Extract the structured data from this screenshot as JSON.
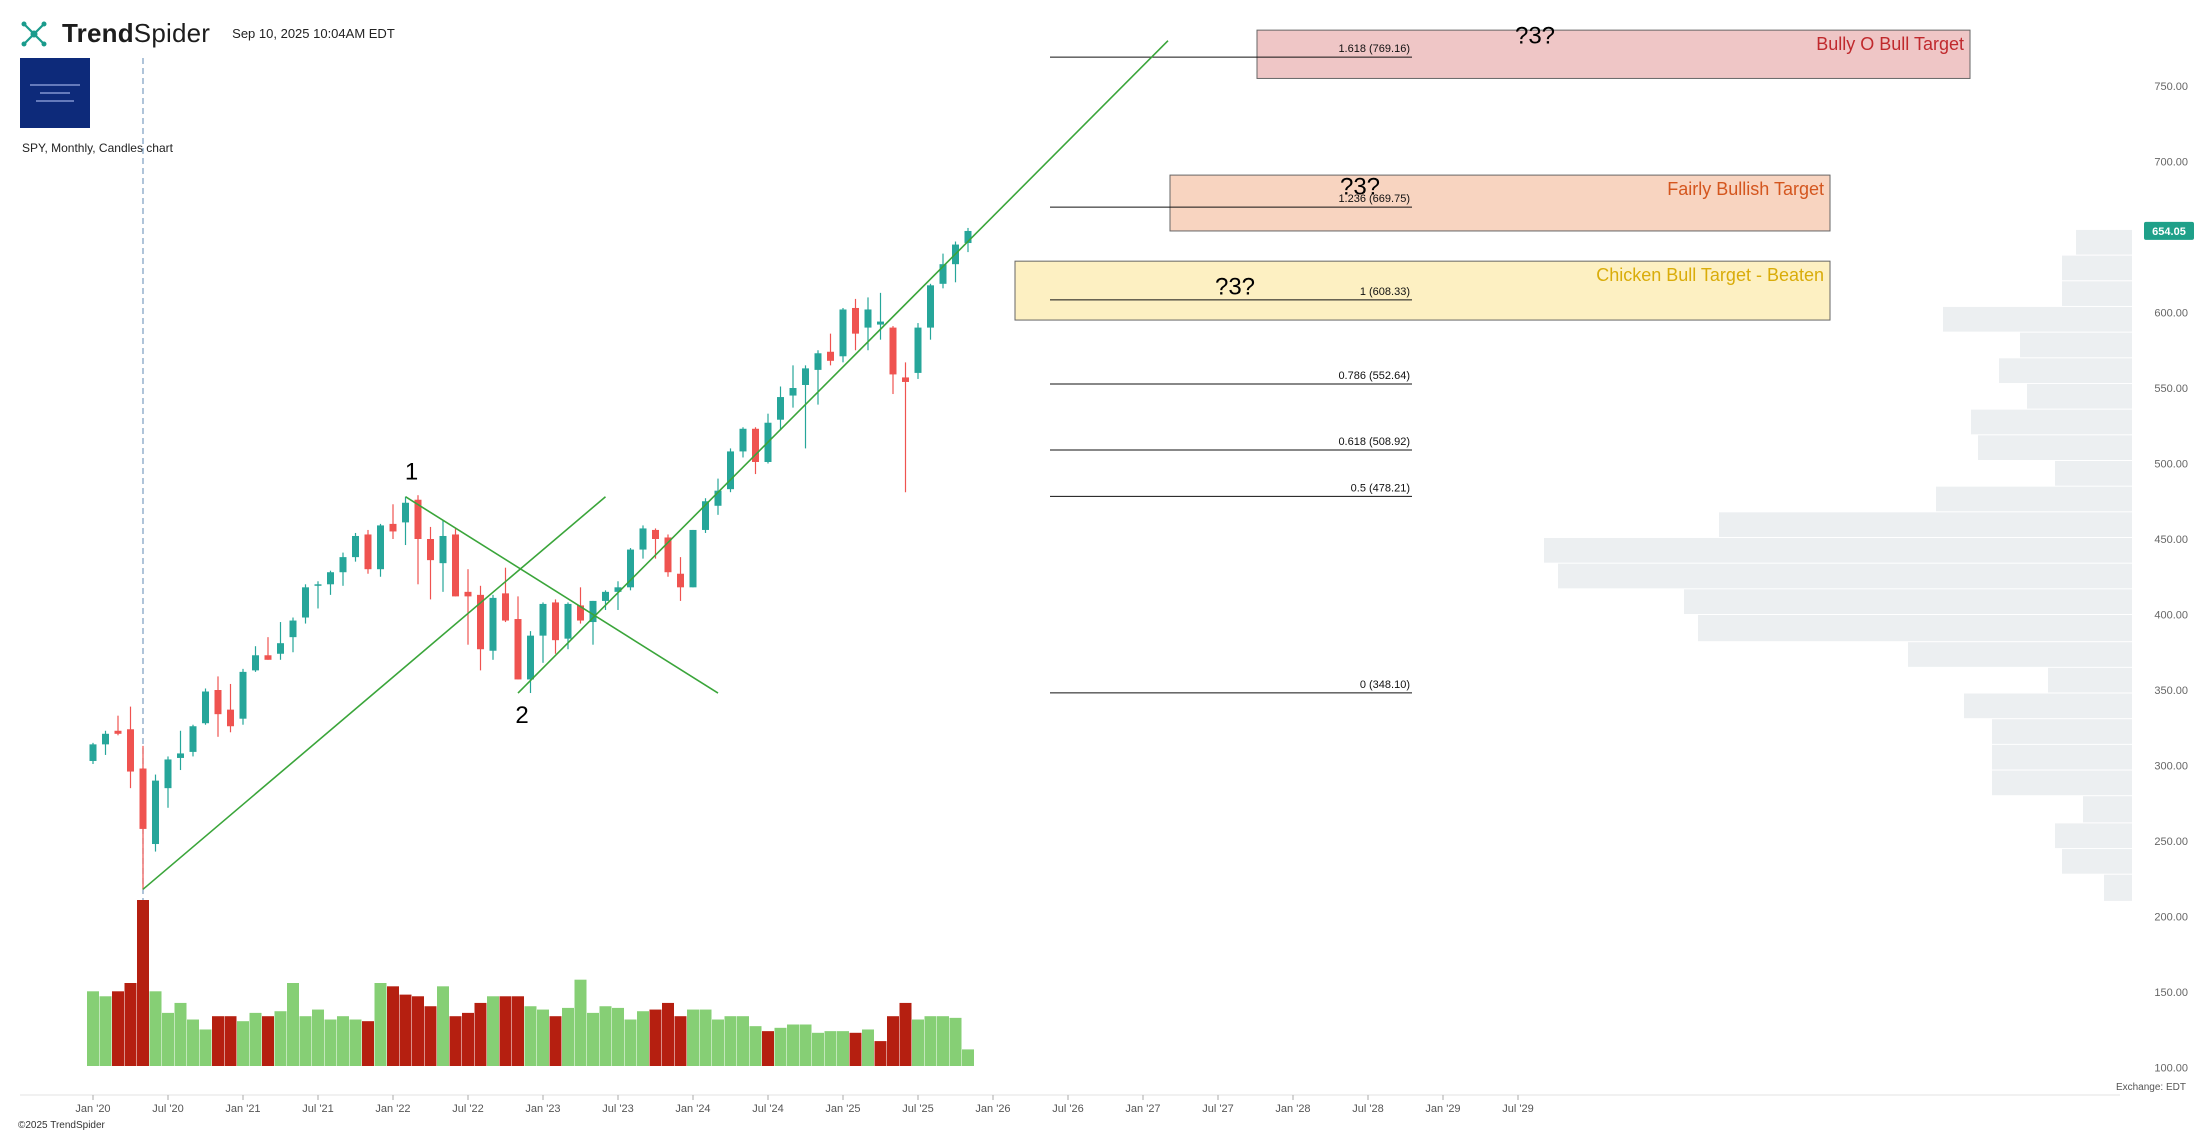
{
  "header": {
    "brand_bold": "Trend",
    "brand_light": "Spider",
    "timestamp": "Sep 10, 2025 10:04AM EDT",
    "symbol_line": "SPY, Monthly, Candles chart",
    "copyright": "©2025 TrendSpider",
    "exchange": "Exchange: EDT"
  },
  "chart_data": {
    "type": "candlestick",
    "symbol": "SPY",
    "interval": "Monthly",
    "x_tick_labels": [
      "Jan '20",
      "Jul '20",
      "Jan '21",
      "Jul '21",
      "Jan '22",
      "Jul '22",
      "Jan '23",
      "Jul '23",
      "Jan '24",
      "Jul '24",
      "Jan '25",
      "Jul '25",
      "Jan '26",
      "Jul '26",
      "Jan '27",
      "Jul '27",
      "Jan '28",
      "Jul '28",
      "Jan '29",
      "Jul '29"
    ],
    "y_ticks": [
      100,
      150,
      200,
      250,
      300,
      350,
      400,
      450,
      500,
      550,
      600,
      650,
      700,
      750
    ],
    "y_tick_labels": [
      "100.00",
      "150.00",
      "200.00",
      "250.00",
      "300.00",
      "350.00",
      "400.00",
      "450.00",
      "500.00",
      "550.00",
      "600.00",
      "700.00",
      "750.00"
    ],
    "ylim": [
      95,
      800
    ],
    "last_price": "654.05",
    "candles": [
      {
        "d": "2019-11",
        "o": 303,
        "h": 315,
        "l": 301,
        "c": 314
      },
      {
        "d": "2019-12",
        "o": 314,
        "h": 323,
        "l": 307,
        "c": 321
      },
      {
        "d": "2020-01",
        "o": 323,
        "h": 333,
        "l": 320,
        "c": 321
      },
      {
        "d": "2020-02",
        "o": 324,
        "h": 339,
        "l": 285,
        "c": 296
      },
      {
        "d": "2020-03",
        "o": 298,
        "h": 313,
        "l": 218,
        "c": 258
      },
      {
        "d": "2020-04",
        "o": 248,
        "h": 294,
        "l": 243,
        "c": 290
      },
      {
        "d": "2020-05",
        "o": 285,
        "h": 306,
        "l": 272,
        "c": 304
      },
      {
        "d": "2020-06",
        "o": 305,
        "h": 323,
        "l": 297,
        "c": 308
      },
      {
        "d": "2020-07",
        "o": 309,
        "h": 327,
        "l": 306,
        "c": 326
      },
      {
        "d": "2020-08",
        "o": 328,
        "h": 351,
        "l": 327,
        "c": 349
      },
      {
        "d": "2020-09",
        "o": 350,
        "h": 359,
        "l": 319,
        "c": 334
      },
      {
        "d": "2020-10",
        "o": 337,
        "h": 354,
        "l": 322,
        "c": 326
      },
      {
        "d": "2020-11",
        "o": 331,
        "h": 364,
        "l": 327,
        "c": 362
      },
      {
        "d": "2020-12",
        "o": 363,
        "h": 379,
        "l": 362,
        "c": 373
      },
      {
        "d": "2021-01",
        "o": 373,
        "h": 385,
        "l": 370,
        "c": 370
      },
      {
        "d": "2021-02",
        "o": 374,
        "h": 395,
        "l": 370,
        "c": 381
      },
      {
        "d": "2021-03",
        "o": 385,
        "h": 398,
        "l": 375,
        "c": 396
      },
      {
        "d": "2021-04",
        "o": 398,
        "h": 420,
        "l": 394,
        "c": 418
      },
      {
        "d": "2021-05",
        "o": 420,
        "h": 422,
        "l": 404,
        "c": 420
      },
      {
        "d": "2021-06",
        "o": 420,
        "h": 429,
        "l": 413,
        "c": 428
      },
      {
        "d": "2021-07",
        "o": 428,
        "h": 441,
        "l": 419,
        "c": 438
      },
      {
        "d": "2021-08",
        "o": 438,
        "h": 454,
        "l": 435,
        "c": 452
      },
      {
        "d": "2021-09",
        "o": 453,
        "h": 456,
        "l": 427,
        "c": 430
      },
      {
        "d": "2021-10",
        "o": 430,
        "h": 460,
        "l": 425,
        "c": 459
      },
      {
        "d": "2021-11",
        "o": 460,
        "h": 473,
        "l": 450,
        "c": 455
      },
      {
        "d": "2021-12",
        "o": 461,
        "h": 478,
        "l": 446,
        "c": 474
      },
      {
        "d": "2022-01",
        "o": 476,
        "h": 479,
        "l": 420,
        "c": 450
      },
      {
        "d": "2022-02",
        "o": 450,
        "h": 458,
        "l": 410,
        "c": 436
      },
      {
        "d": "2022-03",
        "o": 434,
        "h": 462,
        "l": 415,
        "c": 452
      },
      {
        "d": "2022-04",
        "o": 453,
        "h": 457,
        "l": 412,
        "c": 412
      },
      {
        "d": "2022-05",
        "o": 415,
        "h": 430,
        "l": 380,
        "c": 412
      },
      {
        "d": "2022-06",
        "o": 413,
        "h": 419,
        "l": 363,
        "c": 377
      },
      {
        "d": "2022-07",
        "o": 376,
        "h": 413,
        "l": 370,
        "c": 411
      },
      {
        "d": "2022-08",
        "o": 414,
        "h": 431,
        "l": 395,
        "c": 396
      },
      {
        "d": "2022-09",
        "o": 397,
        "h": 412,
        "l": 357,
        "c": 357
      },
      {
        "d": "2022-10",
        "o": 357,
        "h": 389,
        "l": 348,
        "c": 386
      },
      {
        "d": "2022-11",
        "o": 386,
        "h": 408,
        "l": 368,
        "c": 407
      },
      {
        "d": "2022-12",
        "o": 408,
        "h": 410,
        "l": 374,
        "c": 383
      },
      {
        "d": "2023-01",
        "o": 384,
        "h": 408,
        "l": 377,
        "c": 407
      },
      {
        "d": "2023-02",
        "o": 406,
        "h": 418,
        "l": 394,
        "c": 396
      },
      {
        "d": "2023-03",
        "o": 395,
        "h": 409,
        "l": 380,
        "c": 409
      },
      {
        "d": "2023-04",
        "o": 409,
        "h": 416,
        "l": 403,
        "c": 415
      },
      {
        "d": "2023-05",
        "o": 415,
        "h": 422,
        "l": 403,
        "c": 418
      },
      {
        "d": "2023-06",
        "o": 418,
        "h": 444,
        "l": 416,
        "c": 443
      },
      {
        "d": "2023-07",
        "o": 443,
        "h": 459,
        "l": 437,
        "c": 457
      },
      {
        "d": "2023-08",
        "o": 456,
        "h": 457,
        "l": 437,
        "c": 450
      },
      {
        "d": "2023-09",
        "o": 451,
        "h": 453,
        "l": 425,
        "c": 428
      },
      {
        "d": "2023-10",
        "o": 427,
        "h": 438,
        "l": 409,
        "c": 418
      },
      {
        "d": "2023-11",
        "o": 418,
        "h": 456,
        "l": 418,
        "c": 456
      },
      {
        "d": "2023-12",
        "o": 456,
        "h": 477,
        "l": 454,
        "c": 475
      },
      {
        "d": "2024-01",
        "o": 472,
        "h": 490,
        "l": 466,
        "c": 482
      },
      {
        "d": "2024-02",
        "o": 483,
        "h": 510,
        "l": 481,
        "c": 508
      },
      {
        "d": "2024-03",
        "o": 508,
        "h": 524,
        "l": 504,
        "c": 523
      },
      {
        "d": "2024-04",
        "o": 523,
        "h": 524,
        "l": 493,
        "c": 501
      },
      {
        "d": "2024-05",
        "o": 501,
        "h": 533,
        "l": 500,
        "c": 527
      },
      {
        "d": "2024-06",
        "o": 529,
        "h": 551,
        "l": 522,
        "c": 544
      },
      {
        "d": "2024-07",
        "o": 545,
        "h": 565,
        "l": 537,
        "c": 550
      },
      {
        "d": "2024-08",
        "o": 552,
        "h": 565,
        "l": 510,
        "c": 563
      },
      {
        "d": "2024-09",
        "o": 562,
        "h": 575,
        "l": 539,
        "c": 573
      },
      {
        "d": "2024-10",
        "o": 574,
        "h": 586,
        "l": 565,
        "c": 568
      },
      {
        "d": "2024-11",
        "o": 571,
        "h": 603,
        "l": 567,
        "c": 602
      },
      {
        "d": "2024-12",
        "o": 603,
        "h": 609,
        "l": 575,
        "c": 586
      },
      {
        "d": "2025-01",
        "o": 590,
        "h": 610,
        "l": 575,
        "c": 602
      },
      {
        "d": "2025-02",
        "o": 592,
        "h": 613,
        "l": 582,
        "c": 594
      },
      {
        "d": "2025-03",
        "o": 590,
        "h": 591,
        "l": 546,
        "c": 559
      },
      {
        "d": "2025-04",
        "o": 557,
        "h": 567,
        "l": 481,
        "c": 554
      },
      {
        "d": "2025-05",
        "o": 560,
        "h": 593,
        "l": 556,
        "c": 590
      },
      {
        "d": "2025-06",
        "o": 590,
        "h": 619,
        "l": 582,
        "c": 618
      },
      {
        "d": "2025-07",
        "o": 619,
        "h": 639,
        "l": 616,
        "c": 632
      },
      {
        "d": "2025-08",
        "o": 632,
        "h": 647,
        "l": 620,
        "c": 645
      },
      {
        "d": "2025-09",
        "o": 646,
        "h": 656,
        "l": 640,
        "c": 654
      }
    ],
    "volume_up": [
      "g",
      "g",
      "r",
      "r",
      "r",
      "g",
      "g",
      "g",
      "g",
      "g",
      "r",
      "r",
      "g",
      "g",
      "r",
      "g",
      "g",
      "g",
      "g",
      "g",
      "g",
      "g",
      "r",
      "g",
      "r",
      "r",
      "r",
      "r",
      "g",
      "r",
      "r",
      "r",
      "g",
      "r",
      "r",
      "g",
      "g",
      "r",
      "g",
      "g",
      "g",
      "g",
      "g",
      "g",
      "g",
      "r",
      "r",
      "r",
      "g",
      "g",
      "g",
      "g",
      "g",
      "g",
      "r",
      "g",
      "g",
      "g",
      "g",
      "g",
      "g",
      "r",
      "g",
      "r",
      "r",
      "r",
      "g",
      "g",
      "g",
      "g",
      "g"
    ],
    "volume": [
      0.45,
      0.42,
      0.45,
      0.5,
      1.0,
      0.45,
      0.32,
      0.38,
      0.28,
      0.22,
      0.3,
      0.3,
      0.27,
      0.32,
      0.3,
      0.33,
      0.5,
      0.3,
      0.34,
      0.28,
      0.3,
      0.28,
      0.27,
      0.5,
      0.48,
      0.43,
      0.42,
      0.36,
      0.48,
      0.3,
      0.32,
      0.38,
      0.42,
      0.42,
      0.42,
      0.36,
      0.34,
      0.3,
      0.35,
      0.52,
      0.32,
      0.36,
      0.35,
      0.28,
      0.33,
      0.34,
      0.38,
      0.3,
      0.34,
      0.34,
      0.28,
      0.3,
      0.3,
      0.24,
      0.21,
      0.23,
      0.25,
      0.25,
      0.2,
      0.21,
      0.21,
      0.2,
      0.22,
      0.15,
      0.3,
      0.38,
      0.28,
      0.3,
      0.3,
      0.29,
      0.1
    ],
    "fib_levels": [
      {
        "label": "0 (348.10)",
        "value": 348.1
      },
      {
        "label": "0.5 (478.21)",
        "value": 478.21
      },
      {
        "label": "0.618 (508.92)",
        "value": 508.92
      },
      {
        "label": "0.786 (552.64)",
        "value": 552.64
      },
      {
        "label": "1 (608.33)",
        "value": 608.33
      },
      {
        "label": "1.236 (669.75)",
        "value": 669.75
      },
      {
        "label": "1.618 (769.16)",
        "value": 769.16
      }
    ],
    "zones": [
      {
        "label": "Bully O Bull Target",
        "low": 755,
        "high": 787,
        "fill": "#efc6c6",
        "text": "#c0292d"
      },
      {
        "label": "Fairly Bullish Target",
        "low": 654,
        "high": 691,
        "fill": "#f8d4c0",
        "text": "#d4561e"
      },
      {
        "label": "Chicken Bull Target - Beaten",
        "low": 595,
        "high": 634,
        "fill": "#fdf0c2",
        "text": "#d9ac0a"
      }
    ],
    "wave_labels": [
      {
        "label": "1",
        "d": "2021-12",
        "price": 476
      },
      {
        "label": "2",
        "d": "2022-09",
        "price": 348
      }
    ],
    "question_labels": [
      "?3?",
      "?3?",
      "?3?"
    ],
    "trendlines": [
      {
        "from": {
          "d": "2020-03",
          "p": 218
        },
        "to": {
          "d": "2021-12",
          "p": 478
        }
      },
      {
        "from": {
          "d": "2021-12",
          "p": 478
        },
        "to": {
          "d": "2022-09",
          "p": 348
        }
      },
      {
        "from": {
          "d": "2022-09",
          "p": 348
        },
        "to": {
          "d": "2025-09",
          "p": 780
        }
      }
    ],
    "volume_profile": [
      {
        "low": 210,
        "high": 228,
        "size": 0.04
      },
      {
        "low": 228,
        "high": 245,
        "size": 0.1
      },
      {
        "low": 245,
        "high": 262,
        "size": 0.11
      },
      {
        "low": 262,
        "high": 280,
        "size": 0.07
      },
      {
        "low": 280,
        "high": 297,
        "size": 0.2
      },
      {
        "low": 297,
        "high": 314,
        "size": 0.2
      },
      {
        "low": 314,
        "high": 331,
        "size": 0.2
      },
      {
        "low": 331,
        "high": 348,
        "size": 0.24
      },
      {
        "low": 348,
        "high": 365,
        "size": 0.12
      },
      {
        "low": 365,
        "high": 382,
        "size": 0.32
      },
      {
        "low": 382,
        "high": 400,
        "size": 0.62
      },
      {
        "low": 400,
        "high": 417,
        "size": 0.64
      },
      {
        "low": 417,
        "high": 434,
        "size": 0.82
      },
      {
        "low": 434,
        "high": 451,
        "size": 0.84
      },
      {
        "low": 451,
        "high": 468,
        "size": 0.59
      },
      {
        "low": 468,
        "high": 485,
        "size": 0.28
      },
      {
        "low": 485,
        "high": 502,
        "size": 0.11
      },
      {
        "low": 502,
        "high": 519,
        "size": 0.22
      },
      {
        "low": 519,
        "high": 536,
        "size": 0.23
      },
      {
        "low": 536,
        "high": 553,
        "size": 0.15
      },
      {
        "low": 553,
        "high": 570,
        "size": 0.19
      },
      {
        "low": 570,
        "high": 587,
        "size": 0.16
      },
      {
        "low": 587,
        "high": 604,
        "size": 0.27
      },
      {
        "low": 604,
        "high": 621,
        "size": 0.1
      },
      {
        "low": 621,
        "high": 638,
        "size": 0.1
      },
      {
        "low": 638,
        "high": 655,
        "size": 0.08
      }
    ]
  }
}
